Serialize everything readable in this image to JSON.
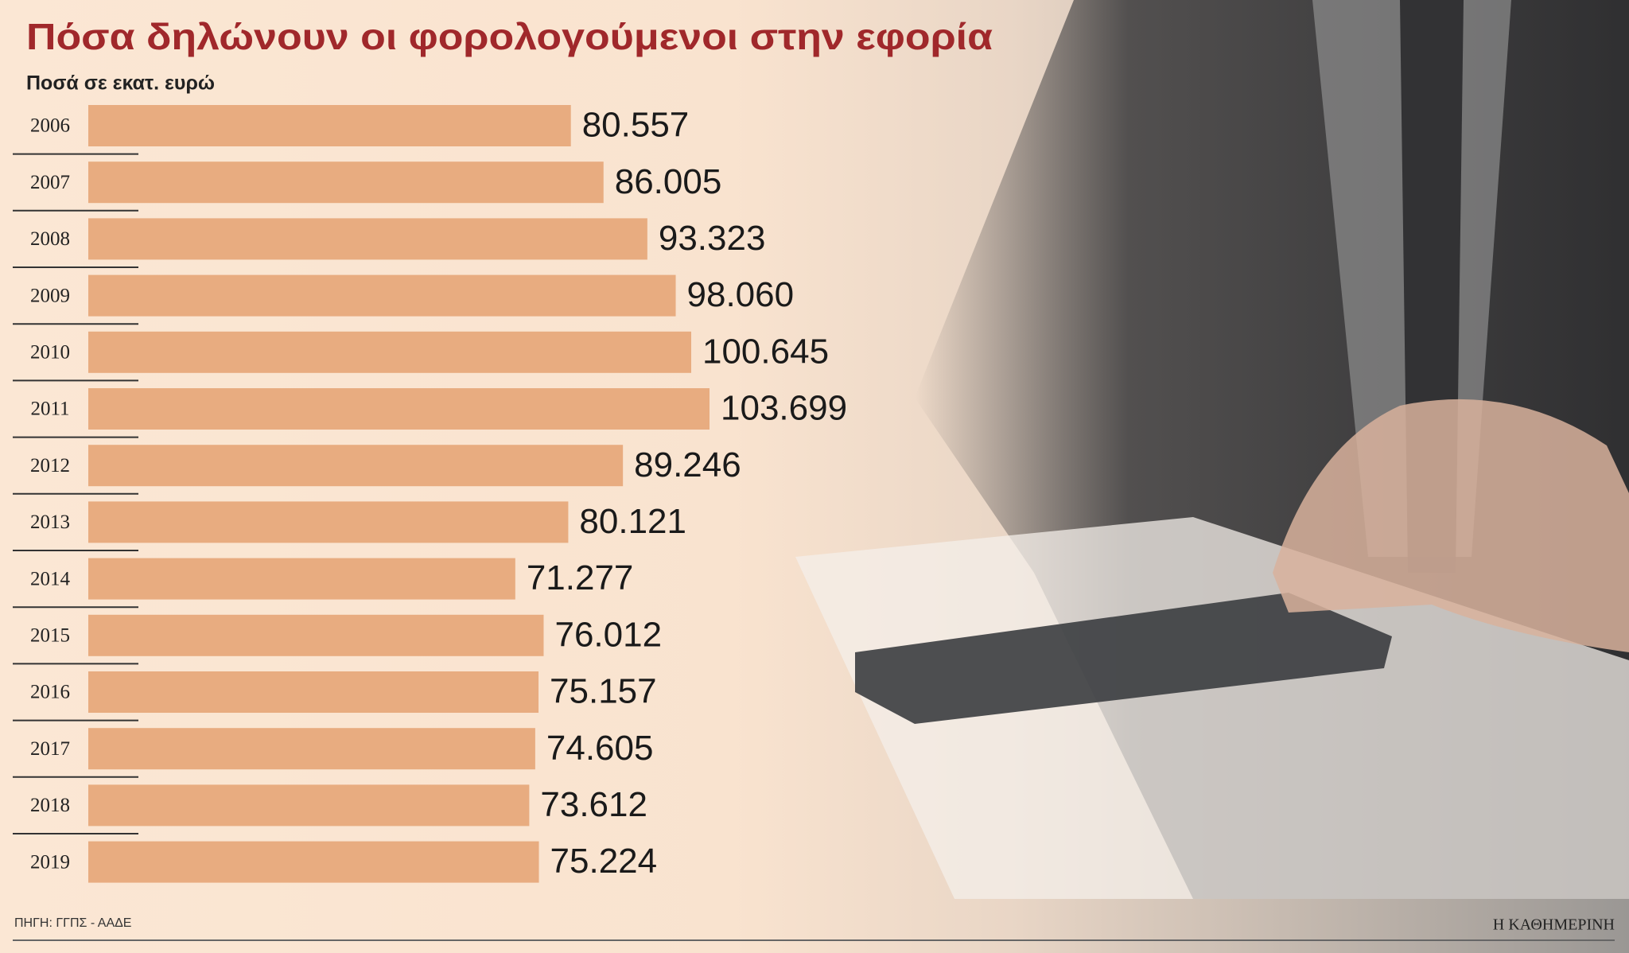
{
  "chart_data": {
    "type": "bar",
    "orientation": "horizontal",
    "title": "Πόσα δηλώνουν οι φορολογούμενοι στην εφορία",
    "subtitle": "Ποσά σε εκατ. ευρώ",
    "categories": [
      "2006",
      "2007",
      "2008",
      "2009",
      "2010",
      "2011",
      "2012",
      "2013",
      "2014",
      "2015",
      "2016",
      "2017",
      "2018",
      "2019"
    ],
    "values": [
      80557,
      86005,
      93323,
      98060,
      100645,
      103699,
      89246,
      80121,
      71277,
      76012,
      75157,
      74605,
      73612,
      75224
    ],
    "value_labels": [
      "80.557",
      "86.005",
      "93.323",
      "98.060",
      "100.645",
      "103.699",
      "89.246",
      "80.121",
      "71.277",
      "76.012",
      "75.157",
      "74.605",
      "73.612",
      "75.224"
    ],
    "color": "#e8ac80",
    "source": "ΠΗΓΗ: ΓΓΠΣ - ΑΑΔΕ",
    "publisher": "Η ΚΑΘΗΜΕΡΙΝΗ"
  }
}
